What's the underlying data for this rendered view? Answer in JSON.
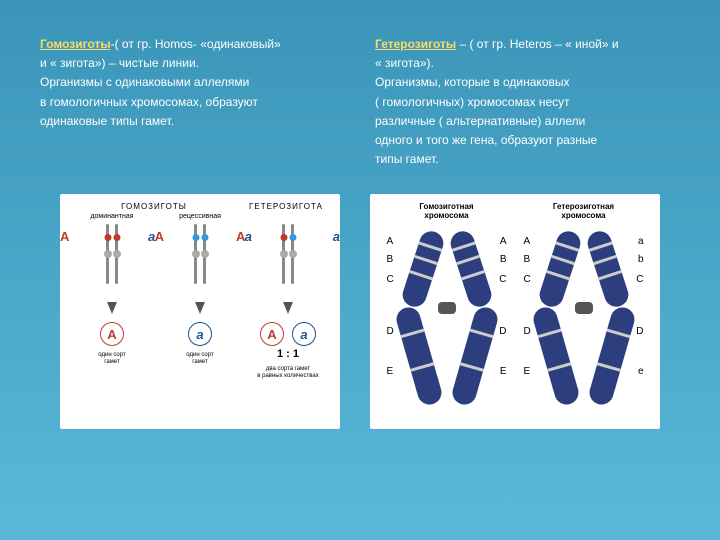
{
  "left_col": {
    "term": "Гомозиготы",
    "etymology": "-( от гр. Homos- «одинаковый»",
    "line2": "и « зигота») – чистые линии.",
    "line3": "Организмы с одинаковыми аллелями",
    "line4": "в гомологичных хромосомах, образуют",
    "line5": "одинаковые типы гамет."
  },
  "right_col": {
    "term": "Гетерозиготы",
    "etymology": " – ( от гр. Heteros – « иной» и",
    "line2": " « зигота»).",
    "line3": "Организмы, которые в одинаковых",
    "line4": " ( гомологичных) хромосомах несут",
    "line5": " различные ( альтернативные) аллели",
    "line6": " одного и того же гена, образуют разные",
    "line7": " типы гамет."
  },
  "diagram_left": {
    "title": "ГОМОЗИГОТЫ",
    "title3": "ГЕТЕРОЗИГОТА",
    "sub_dom": "доминантная",
    "sub_rec": "рецессивная",
    "A": "A",
    "a": "a",
    "ratio": "1 : 1",
    "bot1": "один сорт\nгамет",
    "bot2": "один сорт\nгамет",
    "bot3": "два сорта гамет\nв равных количествах"
  },
  "diagram_right": {
    "title1": "Гомозиготная\nхромосома",
    "title2": "Гетерозиготная\nхромосома",
    "loci_homo_left": [
      "A",
      "B",
      "C",
      "D",
      "E"
    ],
    "loci_homo_right": [
      "A",
      "B",
      "C",
      "D",
      "E"
    ],
    "loci_het_left": [
      "A",
      "B",
      "C",
      "D",
      "E"
    ],
    "loci_het_right": [
      "a",
      "b",
      "C",
      "D",
      "e"
    ]
  },
  "colors": {
    "bg_top": "#3a95b8",
    "bg_bot": "#5bb8d8",
    "term": "#ffd966",
    "chrom": "#2c3e7e",
    "dom": "#c0392b",
    "rec": "#1a5490"
  }
}
